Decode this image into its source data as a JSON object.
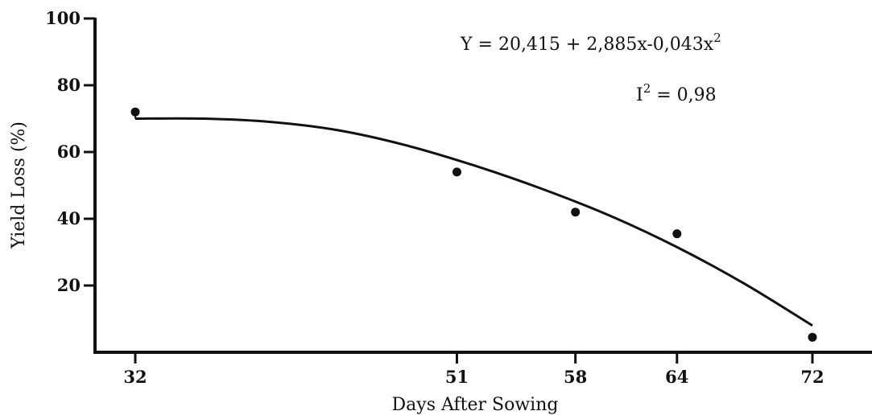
{
  "chart_data": {
    "type": "scatter",
    "title": "",
    "xlabel": "Days After Sowing",
    "ylabel": "Yield Loss (%)",
    "x_ticks": [
      32,
      51,
      58,
      64,
      72
    ],
    "y_ticks": [
      20,
      40,
      60,
      80,
      100
    ],
    "series": [
      {
        "points": [
          {
            "x": 32,
            "y": 72
          },
          {
            "x": 51,
            "y": 54
          },
          {
            "x": 58,
            "y": 42
          },
          {
            "x": 64,
            "y": 35.5
          },
          {
            "x": 72,
            "y": 4.5
          }
        ]
      }
    ],
    "fitted_curve": [
      {
        "x": 32,
        "y": 70
      },
      {
        "x": 36,
        "y": 70
      },
      {
        "x": 40,
        "y": 69
      },
      {
        "x": 44,
        "y": 66.5
      },
      {
        "x": 48,
        "y": 62
      },
      {
        "x": 52,
        "y": 56
      },
      {
        "x": 56,
        "y": 49
      },
      {
        "x": 60,
        "y": 41
      },
      {
        "x": 64,
        "y": 31.5
      },
      {
        "x": 68,
        "y": 20.5
      },
      {
        "x": 72,
        "y": 8
      }
    ],
    "equation": {
      "prefix": "Y = 20,415 + 2,885x-0,043x",
      "sup": "2"
    },
    "r_squared": {
      "prefix": "I",
      "sup": "2",
      "suffix": " = 0,98"
    },
    "grid": false,
    "legend": "none"
  }
}
